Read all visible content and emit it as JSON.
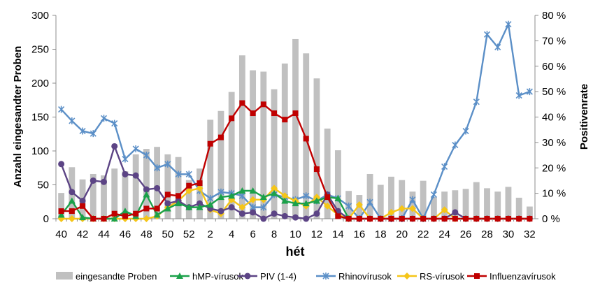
{
  "chart_data": {
    "type": "bar+line",
    "title": "",
    "xlabel": "hét",
    "ylabel": "Anzahl eingesandter Proben",
    "y2label": "Positivenrate",
    "x": [
      40,
      41,
      42,
      43,
      44,
      45,
      46,
      47,
      48,
      49,
      50,
      51,
      52,
      1,
      2,
      3,
      4,
      5,
      6,
      7,
      8,
      9,
      10,
      11,
      12,
      13,
      14,
      15,
      16,
      17,
      18,
      19,
      20,
      21,
      22,
      23,
      24,
      25,
      26,
      27,
      28,
      29,
      30,
      31,
      32
    ],
    "x_tick_labels": [
      "40",
      "42",
      "44",
      "46",
      "48",
      "50",
      "52",
      "2",
      "4",
      "6",
      "8",
      "10",
      "12",
      "14",
      "16",
      "18",
      "20",
      "22",
      "24",
      "26",
      "28",
      "30",
      "32"
    ],
    "ylim": [
      0,
      300
    ],
    "y_ticks": [
      "0",
      "50",
      "100",
      "150",
      "200",
      "250",
      "300"
    ],
    "y2lim": [
      0,
      80
    ],
    "y2_ticks": [
      "0 %",
      "10 %",
      "20 %",
      "30 %",
      "40 %",
      "50 %",
      "60 %",
      "70 %",
      "80 %"
    ],
    "grid": false,
    "legend_position": "bottom",
    "colors": {
      "bars": "#c0c0c0",
      "hmp": "#1ba14a",
      "piv": "#5c4485",
      "rhino": "#5b8fc7",
      "rs": "#f5c518",
      "influenza": "#c00000"
    },
    "bars": {
      "name": "eingesandte Proben",
      "axis": "left",
      "values": [
        38,
        76,
        58,
        66,
        64,
        74,
        70,
        95,
        103,
        106,
        95,
        91,
        57,
        74,
        146,
        159,
        187,
        241,
        219,
        217,
        191,
        229,
        265,
        244,
        207,
        133,
        101,
        41,
        35,
        66,
        50,
        62,
        57,
        40,
        56,
        32,
        40,
        42,
        44,
        54,
        45,
        40,
        47,
        31,
        18
      ]
    },
    "series": [
      {
        "name": "hMP-vírusok",
        "key": "hmp",
        "marker": "triangle",
        "axis": "right",
        "values": [
          1.5,
          7,
          0.5,
          0,
          0,
          0,
          3,
          1,
          9.5,
          1.5,
          4,
          6,
          4.5,
          4.5,
          5.5,
          8.5,
          9,
          11,
          11,
          8.5,
          10,
          7,
          6,
          6,
          7,
          8.5,
          8,
          0,
          null,
          null,
          null,
          null,
          null,
          null,
          null,
          null,
          null,
          null,
          null,
          null,
          null,
          null,
          null,
          null,
          null
        ]
      },
      {
        "name": "PIV (1-4)",
        "key": "piv",
        "marker": "circle",
        "axis": "right",
        "values": [
          21.5,
          10.5,
          7,
          15,
          14.5,
          28.5,
          17.5,
          17,
          11.5,
          12,
          6,
          7,
          4.5,
          6,
          4,
          3,
          4.5,
          2,
          2.5,
          0,
          2,
          1,
          0.5,
          0,
          2,
          9.5,
          3,
          0,
          0,
          0,
          0,
          0,
          0,
          0,
          0,
          0,
          0,
          2.5,
          0,
          0,
          0,
          0,
          0,
          0,
          0
        ]
      },
      {
        "name": "Rhinovírusok",
        "key": "rhino",
        "marker": "star",
        "axis": "right",
        "values": [
          43,
          38.5,
          34.5,
          33.5,
          39.5,
          37.5,
          23.5,
          27.5,
          25,
          20,
          21.5,
          17.5,
          17.5,
          11,
          8,
          10.5,
          10,
          9,
          4.5,
          4.5,
          9.5,
          8.5,
          7.5,
          9,
          7,
          9.5,
          8,
          5,
          0,
          6.5,
          0,
          0,
          0,
          7.5,
          0,
          9.5,
          20.5,
          29,
          34.5,
          46,
          72.5,
          67.5,
          76.5,
          48.5,
          50
        ]
      },
      {
        "name": "RS-vírusok",
        "key": "rs",
        "marker": "diamond",
        "axis": "right",
        "values": [
          0,
          0,
          0,
          0,
          0,
          0,
          0,
          0,
          0,
          1,
          4.5,
          7,
          11,
          12,
          3.5,
          2,
          7.5,
          4.5,
          7.5,
          7.5,
          12,
          9,
          7,
          5,
          8.5,
          5,
          1.5,
          0,
          5.5,
          0,
          0,
          2.5,
          4,
          4,
          0,
          0,
          3.5,
          0,
          0,
          0,
          0,
          0,
          0,
          0,
          0
        ]
      },
      {
        "name": "Influenzavírusok",
        "key": "influenza",
        "marker": "square",
        "axis": "right",
        "values": [
          3,
          3,
          5,
          0,
          0,
          2,
          1,
          2,
          4,
          4,
          9.5,
          9,
          13,
          14,
          29.5,
          32,
          39.5,
          45.5,
          41.5,
          45,
          41.5,
          39,
          41.5,
          31.5,
          19.5,
          8.5,
          1,
          0,
          0,
          0,
          0,
          0,
          0,
          0,
          0,
          0,
          0,
          0,
          0,
          0,
          0,
          0,
          0,
          0,
          0
        ]
      }
    ]
  }
}
